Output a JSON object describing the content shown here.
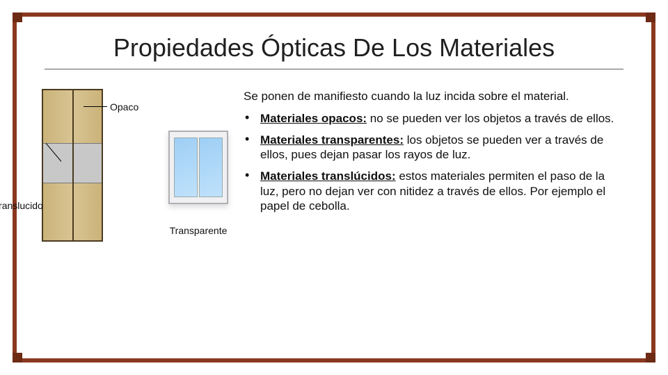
{
  "frame": {
    "border_color": "#8a381f",
    "corner_color": "#6d2a15",
    "corner_size": 14
  },
  "title": "Propiedades Ópticas De Los Materiales",
  "intro": "Se ponen de manifiesto cuando la luz incida sobre el material.",
  "bullets": [
    {
      "term": "Materiales opacos:",
      "rest": " no se pueden ver los objetos a través de ellos."
    },
    {
      "term": "Materiales transparentes:",
      "rest": " los objetos se pueden ver a través de ellos, pues dejan pasar los rayos de luz."
    },
    {
      "term": "Materiales translúcidos:",
      "rest": " estos materiales permiten el paso de la luz, pero no dejan ver con nitidez a través de ellos. Por ejemplo el papel de cebolla."
    }
  ],
  "labels": {
    "opaco": "Opaco",
    "translucido": "Translucido",
    "transparente": "Transparente"
  },
  "typography": {
    "title_fontsize": 36,
    "body_fontsize": 17,
    "label_fontsize": 14
  },
  "colors": {
    "text": "#101010",
    "title_underline": "#606060",
    "wardrobe_wood": "#cbb37a",
    "wardrobe_frame": "#4a3a20",
    "wardrobe_glass": "#c8c8c8",
    "window_frame": "#b0b0b4",
    "window_glass_a": "#9ecff5",
    "window_glass_b": "#bfe1fb",
    "background": "#ffffff"
  }
}
